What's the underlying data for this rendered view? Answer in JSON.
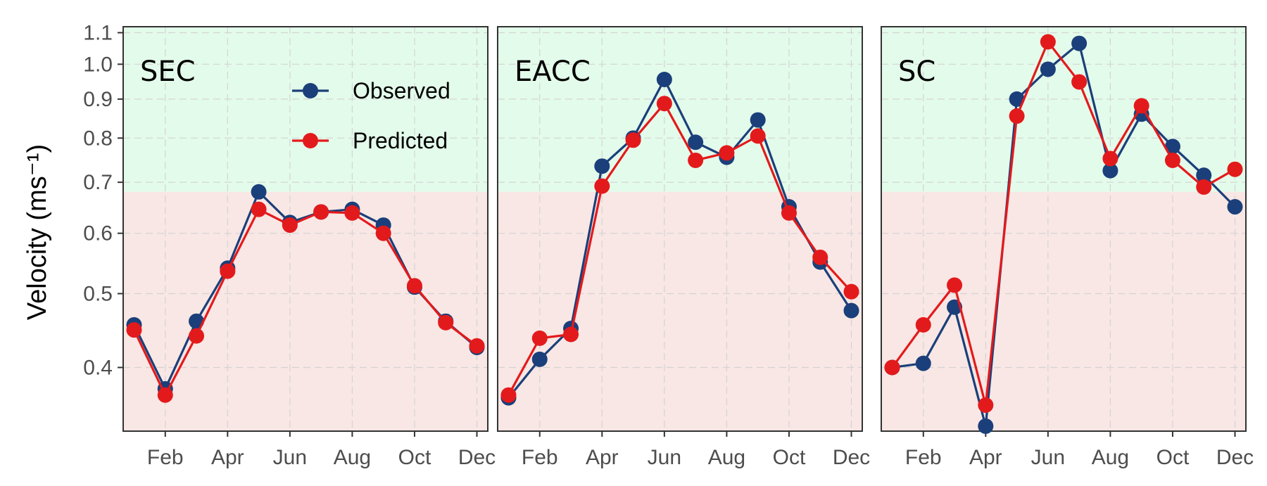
{
  "chart_data": {
    "type": "line",
    "ylabel": "Velocity (ms⁻¹)",
    "yscale": "log",
    "ylim": [
      0.33,
      1.12
    ],
    "yticks": [
      0.4,
      0.5,
      0.6,
      0.7,
      0.8,
      0.9,
      1.0,
      1.1
    ],
    "ytick_labels": [
      "0.4",
      "0.5",
      "0.6",
      "0.7",
      "0.8",
      "0.9",
      "1.0",
      "1.1"
    ],
    "threshold": 0.68,
    "band_colors": {
      "above": "#e3fbea",
      "below": "#f8e7e4"
    },
    "x": [
      "Jan",
      "Feb",
      "Mar",
      "Apr",
      "May",
      "Jun",
      "Jul",
      "Aug",
      "Sep",
      "Oct",
      "Nov",
      "Dec"
    ],
    "xtick_months": [
      2,
      4,
      6,
      8,
      10,
      12
    ],
    "xtick_labels": [
      "Feb",
      "Apr",
      "Jun",
      "Aug",
      "Oct",
      "Dec"
    ],
    "grid": true,
    "legend": {
      "placement": "top-right of first panel",
      "entries": [
        {
          "name": "Observed",
          "color": "#1b3f7a"
        },
        {
          "name": "Predicted",
          "color": "#e31a1c"
        }
      ]
    },
    "panels": [
      {
        "label": "SEC",
        "series": [
          {
            "name": "Observed",
            "color": "#1b3f7a",
            "values": [
              0.455,
              0.375,
              0.46,
              0.54,
              0.68,
              0.62,
              0.64,
              0.645,
              0.615,
              0.51,
              0.46,
              0.425
            ]
          },
          {
            "name": "Predicted",
            "color": "#e31a1c",
            "values": [
              0.448,
              0.368,
              0.44,
              0.535,
              0.645,
              0.615,
              0.64,
              0.638,
              0.6,
              0.512,
              0.458,
              0.427
            ]
          }
        ]
      },
      {
        "label": "EACC",
        "series": [
          {
            "name": "Observed",
            "color": "#1b3f7a",
            "values": [
              0.365,
              0.41,
              0.45,
              0.735,
              0.8,
              0.955,
              0.79,
              0.755,
              0.845,
              0.65,
              0.55,
              0.475
            ]
          },
          {
            "name": "Predicted",
            "color": "#e31a1c",
            "values": [
              0.368,
              0.437,
              0.442,
              0.692,
              0.795,
              0.888,
              0.748,
              0.765,
              0.805,
              0.638,
              0.558,
              0.503
            ]
          }
        ]
      },
      {
        "label": "SC",
        "series": [
          {
            "name": "Observed",
            "color": "#1b3f7a",
            "values": [
              0.4,
              0.405,
              0.48,
              0.335,
              0.9,
              0.985,
              1.065,
              0.725,
              0.86,
              0.78,
              0.715,
              0.65
            ]
          },
          {
            "name": "Predicted",
            "color": "#e31a1c",
            "values": [
              0.4,
              0.455,
              0.513,
              0.357,
              0.855,
              1.07,
              0.948,
              0.752,
              0.882,
              0.748,
              0.69,
              0.728
            ]
          }
        ]
      }
    ]
  }
}
